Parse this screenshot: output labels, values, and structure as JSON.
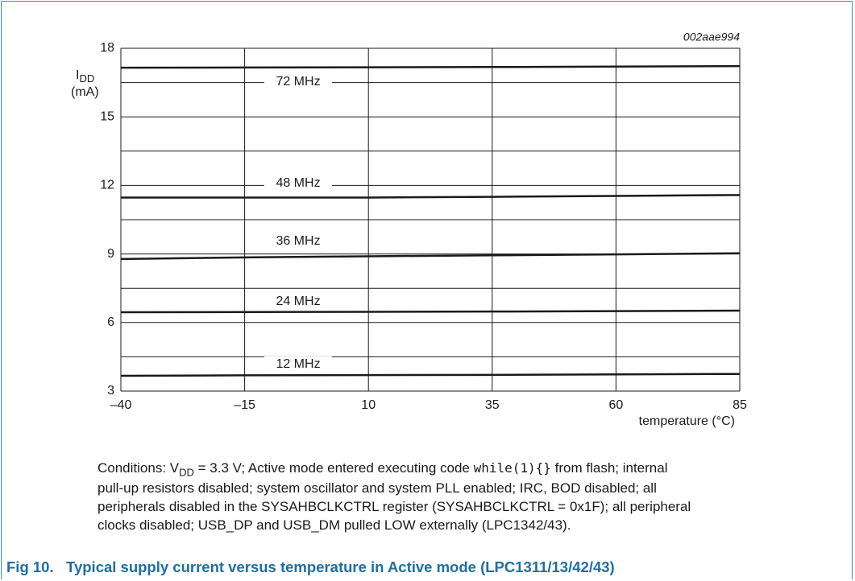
{
  "chart_data": {
    "type": "line",
    "code": "002aae994",
    "y_label": {
      "symbol": "I",
      "subscript": "DD",
      "unit": "(mA)"
    },
    "x_label": "temperature (°C)",
    "x": [
      -40,
      -15,
      10,
      35,
      60,
      85
    ],
    "xlim": [
      -40,
      85
    ],
    "xticks": [
      {
        "value": -40,
        "label": "–40"
      },
      {
        "value": -15,
        "label": "–15"
      },
      10,
      35,
      60,
      85
    ],
    "ylim": [
      3,
      18
    ],
    "yticks": [
      3,
      6,
      9,
      12,
      15,
      18
    ],
    "ygrid": [
      4.5,
      7.5,
      10.5,
      13.5,
      16.5
    ],
    "grid": true,
    "series": [
      {
        "name": "72 MHz",
        "color": "#1a1a1a",
        "values": [
          17.15,
          17.16,
          17.17,
          17.18,
          17.2,
          17.22
        ]
      },
      {
        "name": "48 MHz",
        "color": "#1a1a1a",
        "values": [
          11.47,
          11.47,
          11.47,
          11.5,
          11.54,
          11.58
        ]
      },
      {
        "name": "36 MHz",
        "color": "#1a1a1a",
        "values": [
          8.78,
          8.85,
          8.9,
          8.94,
          8.98,
          9.03
        ]
      },
      {
        "name": "24 MHz",
        "color": "#1a1a1a",
        "values": [
          6.45,
          6.46,
          6.47,
          6.48,
          6.5,
          6.52
        ]
      },
      {
        "name": "12 MHz",
        "color": "#1a1a1a",
        "values": [
          3.67,
          3.69,
          3.7,
          3.71,
          3.73,
          3.75
        ]
      }
    ]
  },
  "conditions": {
    "first_line": [
      "Conditions: V",
      "DD",
      " = 3.3 V; Active mode entered executing code ",
      "while(1){}",
      " from flash; internal"
    ],
    "lines": [
      "pull-up resistors disabled; system oscillator and system PLL enabled; IRC, BOD disabled; all",
      "peripherals disabled in the SYSAHBCLKCTRL register (SYSAHBCLKCTRL = 0x1F); all peripheral",
      "clocks disabled; USB_DP and USB_DM pulled LOW externally (LPC1342/43)."
    ]
  },
  "caption": {
    "number": "Fig 10.",
    "text": "Typical supply current versus temperature in Active mode (LPC1311/13/42/43)"
  }
}
